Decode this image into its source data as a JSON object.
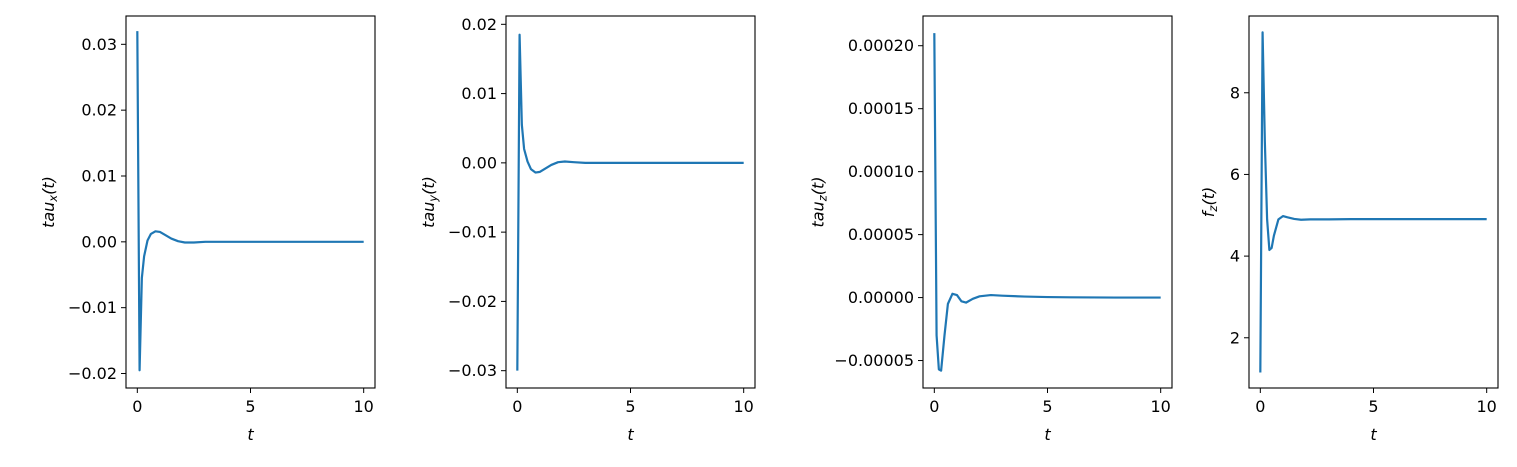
{
  "colors": {
    "line": "#1f77b4",
    "axes": "#000000",
    "background": "#ffffff"
  },
  "chart_data": [
    {
      "type": "line",
      "xlabel": "t",
      "ylabel": {
        "base": "tau",
        "sub": "x",
        "suffix": "(t)"
      },
      "xlim": [
        -0.5,
        10.5
      ],
      "ylim": [
        -0.0222,
        0.0343
      ],
      "xticks": [
        0,
        5,
        10
      ],
      "xtick_labels": [
        "0",
        "5",
        "10"
      ],
      "yticks": [
        -0.02,
        -0.01,
        0.0,
        0.01,
        0.02,
        0.03
      ],
      "ytick_labels": [
        "−0.02",
        "−0.01",
        "0.00",
        "0.01",
        "0.02",
        "0.03"
      ],
      "grid": false,
      "series": [
        {
          "x": [
            0,
            0.1,
            0.2,
            0.3,
            0.45,
            0.6,
            0.8,
            1.0,
            1.2,
            1.5,
            1.8,
            2.1,
            2.5,
            3,
            4,
            5,
            6,
            7,
            8,
            9,
            10
          ],
          "y": [
            0.032,
            -0.0195,
            -0.0055,
            -0.0022,
            0.0002,
            0.0012,
            0.0016,
            0.0015,
            0.0011,
            0.0005,
            0.0001,
            -0.0001,
            -0.0001,
            0,
            0,
            0,
            0,
            0,
            0,
            0,
            0
          ]
        }
      ]
    },
    {
      "type": "line",
      "xlabel": "t",
      "ylabel": {
        "base": "tau",
        "sub": "y",
        "suffix": "(t)"
      },
      "xlim": [
        -0.5,
        10.5
      ],
      "ylim": [
        -0.0325,
        0.0212
      ],
      "xticks": [
        0,
        5,
        10
      ],
      "xtick_labels": [
        "0",
        "5",
        "10"
      ],
      "yticks": [
        -0.03,
        -0.02,
        -0.01,
        0.0,
        0.01,
        0.02
      ],
      "ytick_labels": [
        "−0.03",
        "−0.02",
        "−0.01",
        "0.00",
        "0.01",
        "0.02"
      ],
      "grid": false,
      "series": [
        {
          "x": [
            0,
            0.1,
            0.2,
            0.3,
            0.45,
            0.6,
            0.8,
            1.0,
            1.2,
            1.5,
            1.8,
            2.1,
            2.5,
            3,
            4,
            5,
            6,
            7,
            8,
            9,
            10
          ],
          "y": [
            -0.03,
            0.0185,
            0.0055,
            0.002,
            0.0002,
            -0.0009,
            -0.0014,
            -0.0013,
            -0.0009,
            -0.0003,
            0.0001,
            0.0002,
            0.0001,
            0,
            0,
            0,
            0,
            0,
            0,
            0,
            0
          ]
        }
      ]
    },
    {
      "type": "line",
      "xlabel": "t",
      "ylabel": {
        "base": "tau",
        "sub": "z",
        "suffix": "(t)"
      },
      "xlim": [
        -0.5,
        10.5
      ],
      "ylim": [
        -7.18e-05,
        0.0002236
      ],
      "xticks": [
        0,
        5,
        10
      ],
      "xtick_labels": [
        "0",
        "5",
        "10"
      ],
      "yticks": [
        -5e-05,
        0.0,
        5e-05,
        0.0001,
        0.00015,
        0.0002
      ],
      "ytick_labels": [
        "−0.00005",
        "0.00000",
        "0.00005",
        "0.00010",
        "0.00015",
        "0.00020"
      ],
      "grid": false,
      "series": [
        {
          "x": [
            0,
            0.1,
            0.2,
            0.3,
            0.45,
            0.6,
            0.8,
            1.0,
            1.2,
            1.4,
            1.7,
            2.0,
            2.5,
            3,
            4,
            5,
            6,
            7,
            8,
            9,
            10
          ],
          "y": [
            0.00021,
            -3e-05,
            -5.7e-05,
            -5.8e-05,
            -3e-05,
            -5e-06,
            3e-06,
            2e-06,
            -3e-06,
            -4e-06,
            -1e-06,
            1e-06,
            2e-06,
            1.5e-06,
            8e-07,
            4e-07,
            2e-07,
            1e-07,
            0,
            0,
            0
          ]
        }
      ]
    },
    {
      "type": "line",
      "xlabel": "t",
      "ylabel": {
        "base": "f",
        "sub": "z",
        "suffix": "(t)"
      },
      "xlim": [
        -0.5,
        10.5
      ],
      "ylim": [
        0.77,
        9.88
      ],
      "xticks": [
        0,
        5,
        10
      ],
      "xtick_labels": [
        "0",
        "5",
        "10"
      ],
      "yticks": [
        2,
        4,
        6,
        8
      ],
      "ytick_labels": [
        "2",
        "4",
        "6",
        "8"
      ],
      "grid": false,
      "series": [
        {
          "x": [
            0,
            0.1,
            0.2,
            0.3,
            0.4,
            0.5,
            0.6,
            0.8,
            1.0,
            1.2,
            1.5,
            1.8,
            2.2,
            3,
            4,
            5,
            6,
            7,
            8,
            9,
            10
          ],
          "y": [
            1.15,
            9.48,
            6.8,
            4.9,
            4.15,
            4.2,
            4.5,
            4.9,
            4.98,
            4.95,
            4.91,
            4.89,
            4.9,
            4.9,
            4.905,
            4.905,
            4.905,
            4.905,
            4.905,
            4.905,
            4.905
          ]
        }
      ]
    }
  ]
}
